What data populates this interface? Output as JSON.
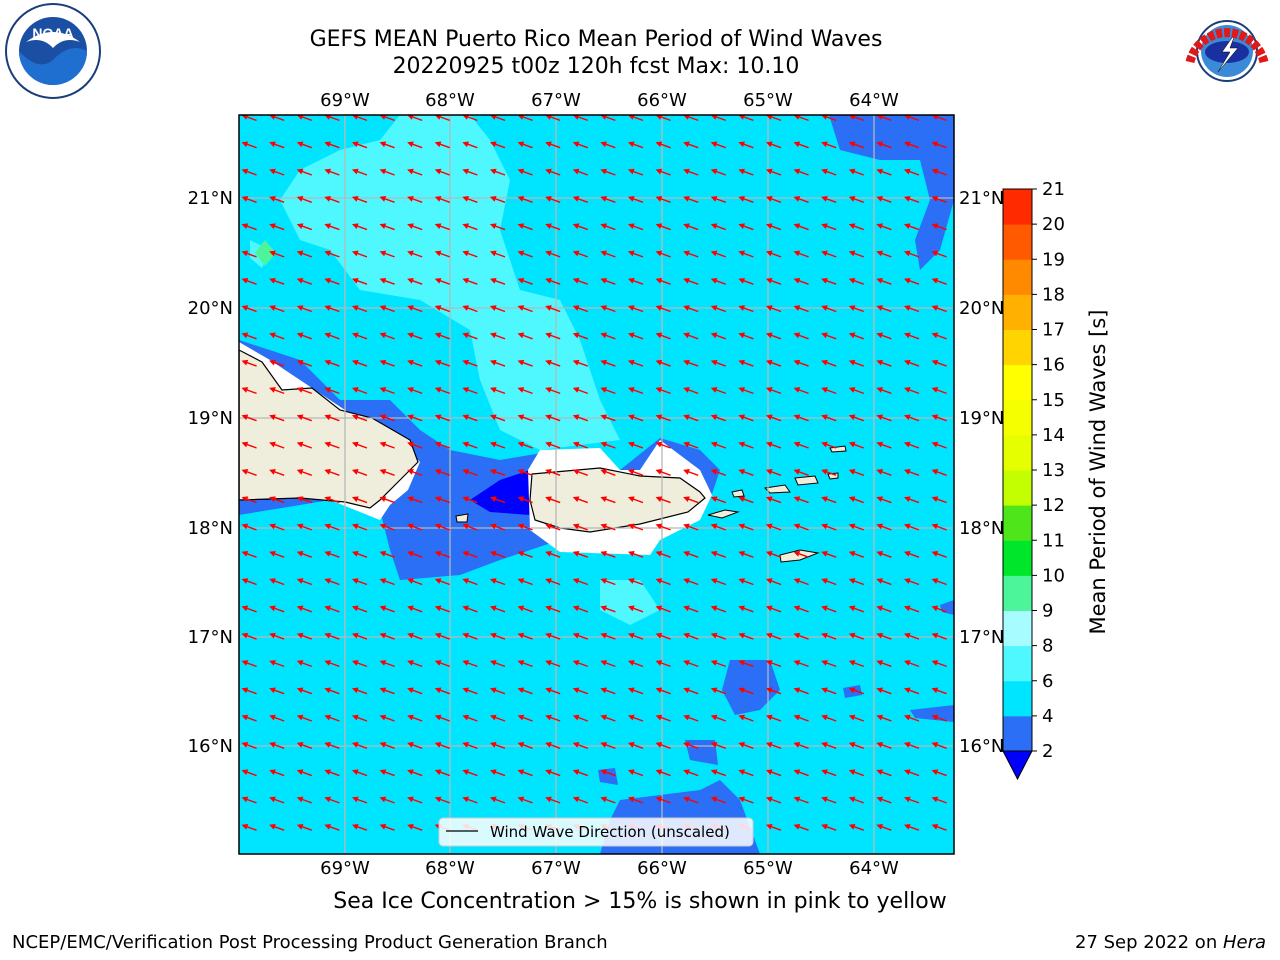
{
  "title_line1": "GEFS MEAN Puerto Rico Mean Period of Wind Waves",
  "title_line2": "20220925 t00z 120h fcst   Max: 10.10",
  "logos": {
    "left": "NOAA",
    "right": "NATIONAL WEATHER SERVICE"
  },
  "map": {
    "lon_labels": [
      "69°W",
      "68°W",
      "67°W",
      "66°W",
      "65°W",
      "64°W"
    ],
    "lat_labels": [
      "21°N",
      "20°N",
      "19°N",
      "18°N",
      "17°N",
      "16°N"
    ],
    "legend_label": "Wind Wave Direction (unscaled)"
  },
  "colorbar": {
    "label": "Mean Period of Wind Waves [s]",
    "ticks": [
      "2",
      "4",
      "6",
      "8",
      "9",
      "10",
      "11",
      "12",
      "13",
      "14",
      "15",
      "16",
      "17",
      "18",
      "19",
      "20",
      "21"
    ],
    "colors": [
      "#2a6ff5",
      "#00e5ff",
      "#4ff7ff",
      "#a6fcff",
      "#4cf59a",
      "#00e62a",
      "#4ee61a",
      "#c3ff00",
      "#e6ff00",
      "#f5ff00",
      "#ffff00",
      "#ffd400",
      "#ffb000",
      "#ff8a00",
      "#ff5a00",
      "#ff2a00",
      "#ff0000"
    ],
    "under_color": "#0000ff"
  },
  "note": "Sea Ice Concentration > 15% is shown in pink to yellow",
  "footer_left": "NCEP/EMC/Verification Post Processing Product Generation Branch",
  "footer_right_date": "27 Sep 2022 on ",
  "footer_right_host": "Hera"
}
